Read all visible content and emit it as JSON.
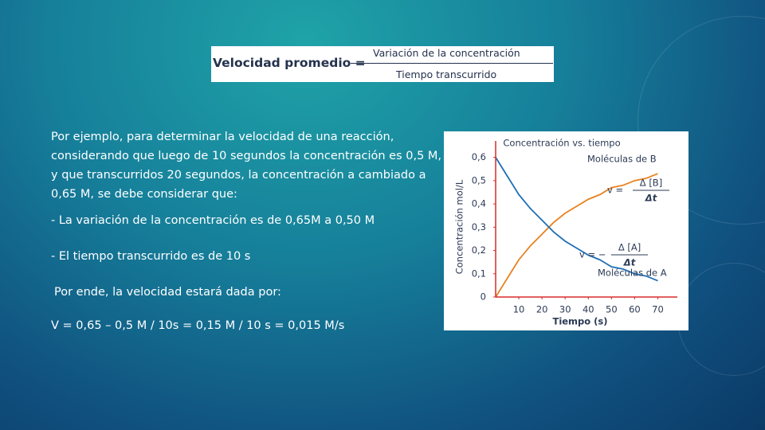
{
  "formula": {
    "lhs": "Velocidad promedio =",
    "numerator": "Variación de la concentración",
    "denominator": "Tiempo transcurrido"
  },
  "paragraphs": [
    "Por ejemplo, para determinar la velocidad de una reacción, considerando que luego de 10 segundos la concentración es 0,5 M, y que transcurridos 20 segundos, la concentración a cambiado a 0,65 M, se debe considerar que:",
    "- La variación de la concentración es de 0,65M a 0,50 M",
    "- El tiempo transcurrido es de 10 s",
    "Por ende, la velocidad estará dada por:",
    "V = 0,65 – 0,5 M / 10s = 0,15 M / 10 s = 0,015 M/s"
  ],
  "chart_data": {
    "type": "line",
    "title": "Concentración vs. tiempo",
    "x_label": "Tiempo (s)",
    "y_label": "Concentración mol/L",
    "x": [
      0,
      5,
      10,
      15,
      20,
      25,
      30,
      35,
      40,
      45,
      50,
      55,
      60,
      65,
      70
    ],
    "xlim": [
      0,
      75
    ],
    "xticks": [
      10,
      20,
      30,
      40,
      50,
      60,
      70
    ],
    "ylim": [
      0,
      0.65
    ],
    "yticks": [
      0,
      {
        "value": 0.1,
        "label": "0,1"
      },
      {
        "value": 0.2,
        "label": "0,2"
      },
      {
        "value": 0.3,
        "label": "0,3"
      },
      {
        "value": 0.4,
        "label": "0,4"
      },
      {
        "value": 0.5,
        "label": "0,5"
      },
      {
        "value": 0.6,
        "label": "0,6"
      }
    ],
    "axis_color": "#d92b2b",
    "series": [
      {
        "name": "Moléculas de B",
        "color": "#e8821e",
        "values": [
          0,
          0.08,
          0.16,
          0.22,
          0.27,
          0.32,
          0.36,
          0.39,
          0.42,
          0.44,
          0.47,
          0.48,
          0.5,
          0.51,
          0.53
        ]
      },
      {
        "name": "Moléculas de A",
        "color": "#1f6fb5",
        "values": [
          0.6,
          0.52,
          0.44,
          0.38,
          0.33,
          0.28,
          0.24,
          0.21,
          0.18,
          0.16,
          0.13,
          0.12,
          0.1,
          0.09,
          0.07
        ]
      }
    ],
    "annotations": [
      {
        "prefix": "v =",
        "numerator": "Δ [B]",
        "denominator": "Δt"
      },
      {
        "prefix": "v = −",
        "numerator": "Δ [A]",
        "denominator": "Δt"
      }
    ]
  }
}
